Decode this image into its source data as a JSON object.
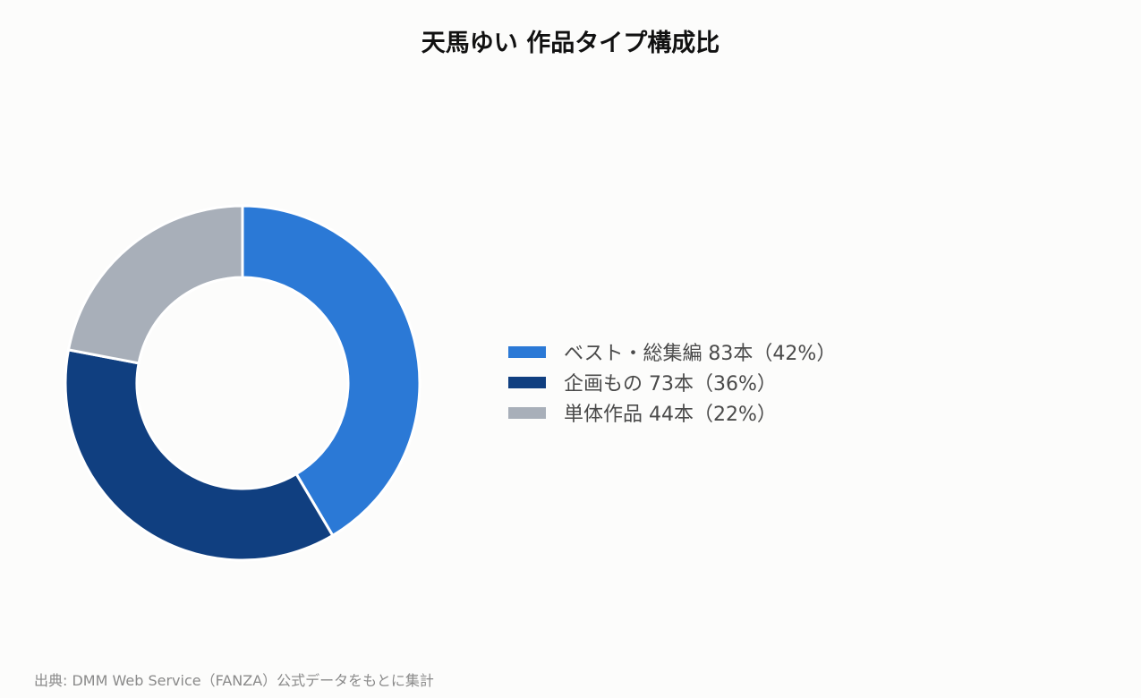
{
  "chart_data": {
    "type": "pie",
    "title": "天馬ゆい 作品タイプ構成比",
    "categories": [
      "ベスト・総集編",
      "企画もの",
      "単体作品"
    ],
    "values": [
      83,
      73,
      44
    ],
    "percentages": [
      42,
      36,
      22
    ],
    "colors": [
      "#2b79d6",
      "#103f80",
      "#a8afb9"
    ],
    "legend_labels": [
      "ベスト・総集編 83本（42%）",
      "企画もの 73本（36%）",
      "単体作品 44本（22%）"
    ],
    "legend_position": "right",
    "donut": true,
    "start_angle": "top",
    "direction": "clockwise"
  },
  "source": "出典: DMM Web Service（FANZA）公式データをもとに集計"
}
